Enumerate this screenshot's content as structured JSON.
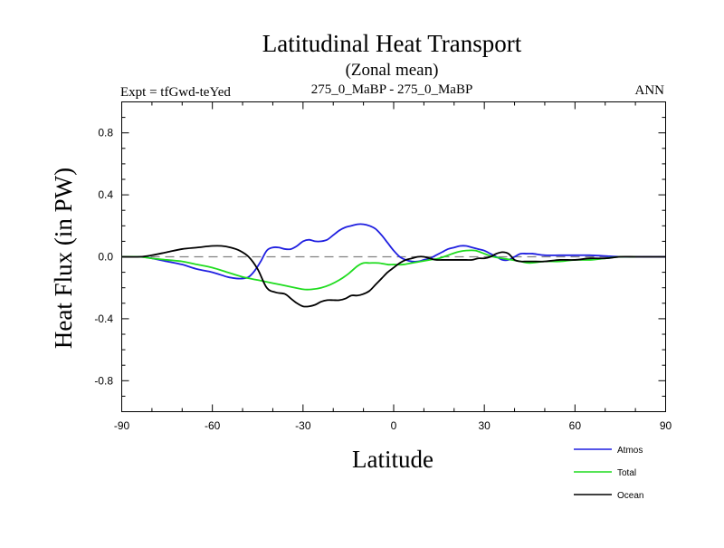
{
  "chart_data": {
    "type": "line",
    "title": "Latitudinal Heat Transport",
    "subtitle": "(Zonal mean)",
    "left_label": "Expt = tfGwd-teYed",
    "center_label": "275_0_MaBP - 275_0_MaBP",
    "right_label": "ANN",
    "xlabel": "Latitude",
    "ylabel": "Heat Flux (in PW)",
    "xlim": [
      -90,
      90
    ],
    "ylim": [
      -1.0,
      1.0
    ],
    "xticks": [
      -90,
      -60,
      -30,
      0,
      30,
      60,
      90
    ],
    "xtick_labels": [
      "-90",
      "-60",
      "-30",
      "0",
      "30",
      "60",
      "90"
    ],
    "yticks": [
      -0.8,
      -0.4,
      0.0,
      0.4,
      0.8
    ],
    "ytick_labels": [
      "-0.8",
      "-0.4",
      "0.0",
      "0.4",
      "0.8"
    ],
    "zero_line": {
      "value": 0.0,
      "style": "dashed",
      "color": "#808080"
    },
    "series": [
      {
        "name": "Atmos",
        "color": "#1f1fe0",
        "x": [
          -90,
          -84,
          -80,
          -75,
          -70,
          -65,
          -60,
          -55,
          -52,
          -50,
          -48,
          -46,
          -44,
          -42,
          -40,
          -38,
          -36,
          -34,
          -32,
          -30,
          -28,
          -26,
          -24,
          -22,
          -20,
          -18,
          -16,
          -14,
          -12,
          -10,
          -8,
          -6,
          -4,
          -2,
          0,
          2,
          4,
          6,
          8,
          10,
          12,
          14,
          16,
          18,
          20,
          22,
          24,
          26,
          28,
          30,
          32,
          34,
          36,
          38,
          40,
          42,
          44,
          46,
          50,
          55,
          60,
          65,
          70,
          75,
          80,
          85,
          90
        ],
        "y": [
          0.0,
          0.0,
          -0.01,
          -0.03,
          -0.05,
          -0.08,
          -0.1,
          -0.13,
          -0.14,
          -0.14,
          -0.13,
          -0.09,
          -0.03,
          0.04,
          0.06,
          0.06,
          0.05,
          0.05,
          0.07,
          0.1,
          0.11,
          0.1,
          0.1,
          0.11,
          0.14,
          0.17,
          0.19,
          0.2,
          0.21,
          0.21,
          0.2,
          0.18,
          0.14,
          0.09,
          0.04,
          0.0,
          -0.02,
          -0.03,
          -0.03,
          -0.02,
          -0.01,
          0.01,
          0.03,
          0.05,
          0.06,
          0.07,
          0.07,
          0.06,
          0.05,
          0.04,
          0.02,
          0.0,
          -0.02,
          -0.02,
          0.0,
          0.02,
          0.02,
          0.02,
          0.01,
          0.01,
          0.01,
          0.01,
          0.005,
          0.0,
          0.0,
          0.0,
          0.0
        ]
      },
      {
        "name": "Total",
        "color": "#1fdc1f",
        "x": [
          -90,
          -84,
          -80,
          -75,
          -70,
          -65,
          -60,
          -55,
          -50,
          -45,
          -40,
          -35,
          -30,
          -27,
          -24,
          -21,
          -18,
          -15,
          -12,
          -10,
          -8,
          -5,
          -2,
          0,
          3,
          6,
          9,
          12,
          15,
          18,
          21,
          24,
          27,
          30,
          33,
          36,
          39,
          42,
          45,
          50,
          55,
          60,
          65,
          70,
          75,
          80
        ],
        "y": [
          0.0,
          0.0,
          -0.01,
          -0.02,
          -0.03,
          -0.05,
          -0.07,
          -0.1,
          -0.13,
          -0.15,
          -0.17,
          -0.19,
          -0.21,
          -0.21,
          -0.2,
          -0.18,
          -0.15,
          -0.11,
          -0.06,
          -0.04,
          -0.04,
          -0.04,
          -0.05,
          -0.05,
          -0.05,
          -0.04,
          -0.03,
          -0.02,
          -0.01,
          0.01,
          0.03,
          0.04,
          0.04,
          0.02,
          0.0,
          -0.01,
          -0.02,
          -0.03,
          -0.04,
          -0.03,
          -0.03,
          -0.02,
          -0.02,
          -0.01,
          0.0,
          0.0
        ]
      },
      {
        "name": "Ocean",
        "color": "#000000",
        "x": [
          -90,
          -84,
          -80,
          -75,
          -70,
          -65,
          -60,
          -57,
          -54,
          -51,
          -48,
          -45,
          -42,
          -39,
          -36,
          -34,
          -32,
          -30,
          -28,
          -26,
          -24,
          -22,
          -20,
          -18,
          -16,
          -14,
          -12,
          -10,
          -8,
          -6,
          -4,
          -2,
          0,
          2,
          4,
          6,
          8,
          10,
          12,
          14,
          16,
          18,
          20,
          22,
          24,
          26,
          28,
          30,
          32,
          34,
          36,
          38,
          40,
          42,
          44,
          46,
          50,
          55,
          60,
          65,
          70,
          75,
          80,
          85,
          90
        ],
        "y": [
          0.0,
          0.0,
          0.01,
          0.03,
          0.05,
          0.06,
          0.07,
          0.07,
          0.06,
          0.04,
          0.0,
          -0.08,
          -0.2,
          -0.23,
          -0.24,
          -0.27,
          -0.3,
          -0.32,
          -0.32,
          -0.31,
          -0.29,
          -0.28,
          -0.28,
          -0.28,
          -0.27,
          -0.25,
          -0.25,
          -0.24,
          -0.22,
          -0.18,
          -0.14,
          -0.1,
          -0.07,
          -0.04,
          -0.02,
          -0.01,
          0.0,
          0.0,
          -0.01,
          -0.02,
          -0.02,
          -0.02,
          -0.02,
          -0.02,
          -0.02,
          -0.02,
          -0.01,
          -0.01,
          0.0,
          0.02,
          0.03,
          0.02,
          -0.02,
          -0.03,
          -0.03,
          -0.03,
          -0.03,
          -0.02,
          -0.02,
          -0.01,
          -0.01,
          0.0,
          0.0,
          0.0,
          0.0
        ]
      }
    ]
  }
}
